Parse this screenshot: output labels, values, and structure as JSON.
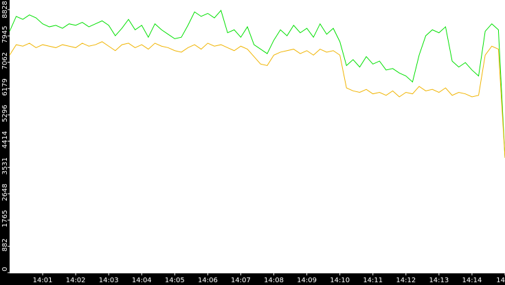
{
  "chart_data": {
    "type": "line",
    "x": [
      0,
      0.2,
      0.4,
      0.6,
      0.8,
      1,
      1.2,
      1.4,
      1.6,
      1.8,
      2,
      2.2,
      2.4,
      2.6,
      2.8,
      3,
      3.2,
      3.4,
      3.6,
      3.8,
      4,
      4.2,
      4.4,
      4.6,
      4.8,
      5,
      5.2,
      5.4,
      5.6,
      5.8,
      6,
      6.2,
      6.4,
      6.6,
      6.8,
      7,
      7.2,
      7.4,
      7.6,
      7.8,
      8,
      8.2,
      8.4,
      8.6,
      8.8,
      9,
      9.2,
      9.4,
      9.6,
      9.8,
      10,
      10.2,
      10.4,
      10.6,
      10.8,
      11,
      11.2,
      11.4,
      11.6,
      11.8,
      12,
      12.2,
      12.4,
      12.6,
      12.8,
      13,
      13.2,
      13.4,
      13.6,
      13.8,
      14,
      14.2,
      14.4,
      14.6,
      14.8,
      15
    ],
    "series": [
      {
        "color": "#00e000",
        "values": [
          8100,
          8600,
          8500,
          8650,
          8550,
          8350,
          8250,
          8300,
          8200,
          8350,
          8300,
          8400,
          8250,
          8350,
          8450,
          8300,
          7950,
          8200,
          8500,
          8150,
          8300,
          7900,
          8350,
          8150,
          8000,
          7850,
          7900,
          8300,
          8750,
          8600,
          8700,
          8550,
          8800,
          8050,
          8150,
          7900,
          8250,
          7650,
          7500,
          7350,
          7800,
          8150,
          7950,
          8300,
          8050,
          8200,
          7900,
          8350,
          8000,
          8200,
          7750,
          6950,
          7150,
          6900,
          7250,
          7000,
          7100,
          6800,
          6850,
          6700,
          6600,
          6400,
          7300,
          7950,
          8150,
          8050,
          8250,
          7100,
          6900,
          7050,
          6800,
          6600,
          8100,
          8350,
          8150,
          3850
        ]
      },
      {
        "color": "#f0b400",
        "values": [
          7300,
          7650,
          7600,
          7700,
          7550,
          7650,
          7600,
          7550,
          7650,
          7600,
          7550,
          7700,
          7600,
          7650,
          7750,
          7600,
          7450,
          7650,
          7700,
          7550,
          7650,
          7500,
          7700,
          7600,
          7550,
          7450,
          7400,
          7550,
          7650,
          7500,
          7700,
          7600,
          7650,
          7550,
          7450,
          7600,
          7500,
          7250,
          7000,
          6950,
          7300,
          7400,
          7450,
          7500,
          7350,
          7450,
          7300,
          7500,
          7400,
          7450,
          7300,
          6200,
          6100,
          6050,
          6150,
          6000,
          6050,
          5950,
          6100,
          5900,
          6050,
          6000,
          6250,
          6100,
          6150,
          6050,
          6200,
          5950,
          6050,
          6000,
          5900,
          5950,
          7300,
          7600,
          7500,
          3850
        ]
      }
    ],
    "xlim": [
      0,
      15
    ],
    "xticks": [
      {
        "value": 1,
        "label": "14:01"
      },
      {
        "value": 2,
        "label": "14:02"
      },
      {
        "value": 3,
        "label": "14:03"
      },
      {
        "value": 4,
        "label": "14:04"
      },
      {
        "value": 5,
        "label": "14:05"
      },
      {
        "value": 6,
        "label": "14:06"
      },
      {
        "value": 7,
        "label": "14:07"
      },
      {
        "value": 8,
        "label": "14:08"
      },
      {
        "value": 9,
        "label": "14:09"
      },
      {
        "value": 10,
        "label": "14:10"
      },
      {
        "value": 11,
        "label": "14:11"
      },
      {
        "value": 12,
        "label": "14:12"
      },
      {
        "value": 13,
        "label": "14:13"
      },
      {
        "value": 14,
        "label": "14:14"
      },
      {
        "value": 15,
        "label": "14"
      }
    ],
    "ylim": [
      0,
      9150
    ],
    "yticks": [
      0,
      882,
      1765,
      2648,
      3531,
      4414,
      5296,
      6179,
      7062,
      7945,
      8828
    ]
  }
}
